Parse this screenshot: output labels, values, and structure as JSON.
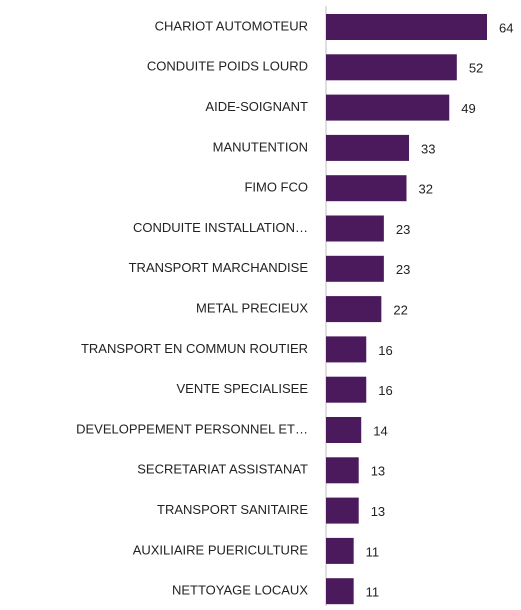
{
  "chart_data": {
    "type": "bar",
    "orientation": "horizontal",
    "categories": [
      "CHARIOT AUTOMOTEUR",
      "CONDUITE POIDS LOURD",
      "AIDE-SOIGNANT",
      "MANUTENTION",
      "FIMO FCO",
      "CONDUITE INSTALLATION…",
      "TRANSPORT MARCHANDISE",
      "METAL PRECIEUX",
      "TRANSPORT EN COMMUN ROUTIER",
      "VENTE SPECIALISEE",
      "DEVELOPPEMENT PERSONNEL ET…",
      "SECRETARIAT ASSISTANAT",
      "TRANSPORT SANITAIRE",
      "AUXILIAIRE PUERICULTURE",
      "NETTOYAGE LOCAUX"
    ],
    "values": [
      64,
      52,
      49,
      33,
      32,
      23,
      23,
      22,
      16,
      16,
      14,
      13,
      13,
      11,
      11
    ],
    "color": "#4b1a5c"
  }
}
